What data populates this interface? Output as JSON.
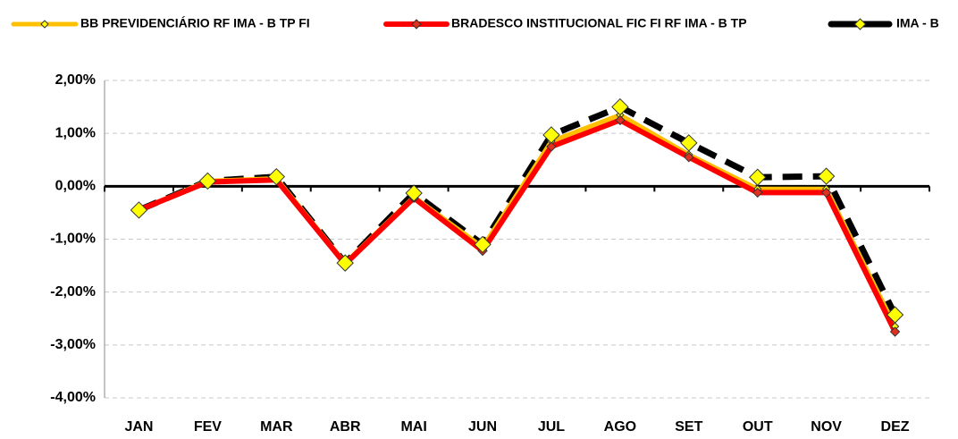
{
  "chart_data": {
    "type": "line",
    "categories": [
      "JAN",
      "FEV",
      "MAR",
      "ABR",
      "MAI",
      "JUN",
      "JUL",
      "AGO",
      "SET",
      "OUT",
      "NOV",
      "DEZ"
    ],
    "series": [
      {
        "name": "BB PREVIDENCIÁRIO RF IMA - B TP FI",
        "color": "#ffc000",
        "marker_color": "#ffff00",
        "values": [
          -0.45,
          0.1,
          0.15,
          -1.45,
          -0.2,
          -1.15,
          0.85,
          1.35,
          0.6,
          -0.05,
          -0.05,
          -2.65
        ]
      },
      {
        "name": "BRADESCO INSTITUCIONAL FIC FI RF IMA - B TP",
        "color": "#ff0000",
        "marker_color": "#e03020",
        "values": [
          -0.45,
          0.08,
          0.12,
          -1.47,
          -0.22,
          -1.22,
          0.75,
          1.25,
          0.55,
          -0.12,
          -0.12,
          -2.75
        ]
      },
      {
        "name": "IMA - B",
        "color": "#000000",
        "marker_color": "#ffff00",
        "values": [
          -0.45,
          0.1,
          0.18,
          -1.45,
          -0.13,
          -1.1,
          0.97,
          1.5,
          0.82,
          0.17,
          0.19,
          -2.43
        ]
      }
    ],
    "ylim": [
      -4,
      2
    ],
    "yticks": [
      {
        "value": 2,
        "label": "2,00%"
      },
      {
        "value": 1,
        "label": "1,00%"
      },
      {
        "value": 0,
        "label": "0,00%"
      },
      {
        "value": -1,
        "label": "-1,00%"
      },
      {
        "value": -2,
        "label": "-2,00%"
      },
      {
        "value": -3,
        "label": "-3,00%"
      },
      {
        "value": -4,
        "label": "-4,00%"
      }
    ],
    "grid": true,
    "legend": "top"
  }
}
